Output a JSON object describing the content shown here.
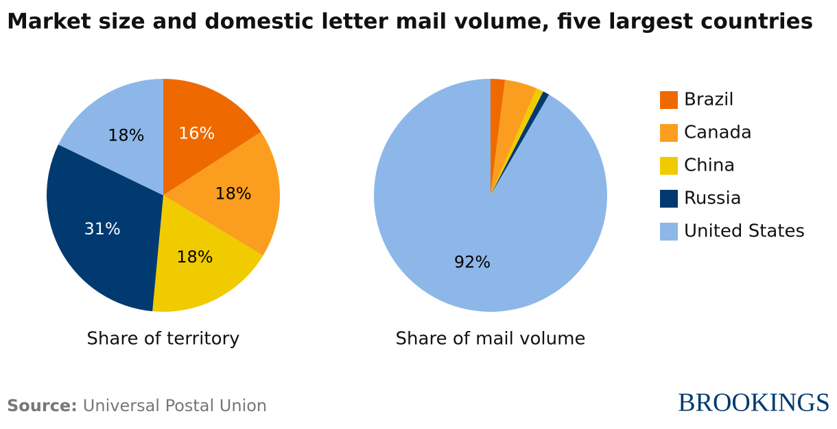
{
  "title": "Market size and domestic letter mail volume, five largest countries",
  "chart_data": [
    {
      "type": "pie",
      "label": "Share of territory",
      "categories": [
        "Brazil",
        "Canada",
        "China",
        "Russia",
        "United States"
      ],
      "values": [
        16,
        18,
        18,
        31,
        18
      ],
      "value_labels": [
        "16%",
        "18%",
        "18%",
        "31%",
        "18%"
      ],
      "colors": [
        "#ee6a00",
        "#fb9e1f",
        "#f0cb00",
        "#003a70",
        "#8db7e8"
      ],
      "label_colors": [
        "#ffffff",
        "#000000",
        "#000000",
        "#ffffff",
        "#000000"
      ]
    },
    {
      "type": "pie",
      "label": "Share of mail volume",
      "categories": [
        "Brazil",
        "Canada",
        "China",
        "Russia",
        "United States"
      ],
      "values": [
        2,
        4.5,
        1,
        0.9,
        92
      ],
      "value_labels": [
        null,
        null,
        null,
        null,
        "92%"
      ],
      "colors": [
        "#ee6a00",
        "#fb9e1f",
        "#f0cb00",
        "#003a70",
        "#8db7e8"
      ],
      "label_colors": [
        "#ffffff",
        "#000000",
        "#000000",
        "#ffffff",
        "#000000"
      ]
    }
  ],
  "source": {
    "label": "Source:",
    "text": "Universal Postal Union"
  },
  "logo": "BROOKINGS"
}
